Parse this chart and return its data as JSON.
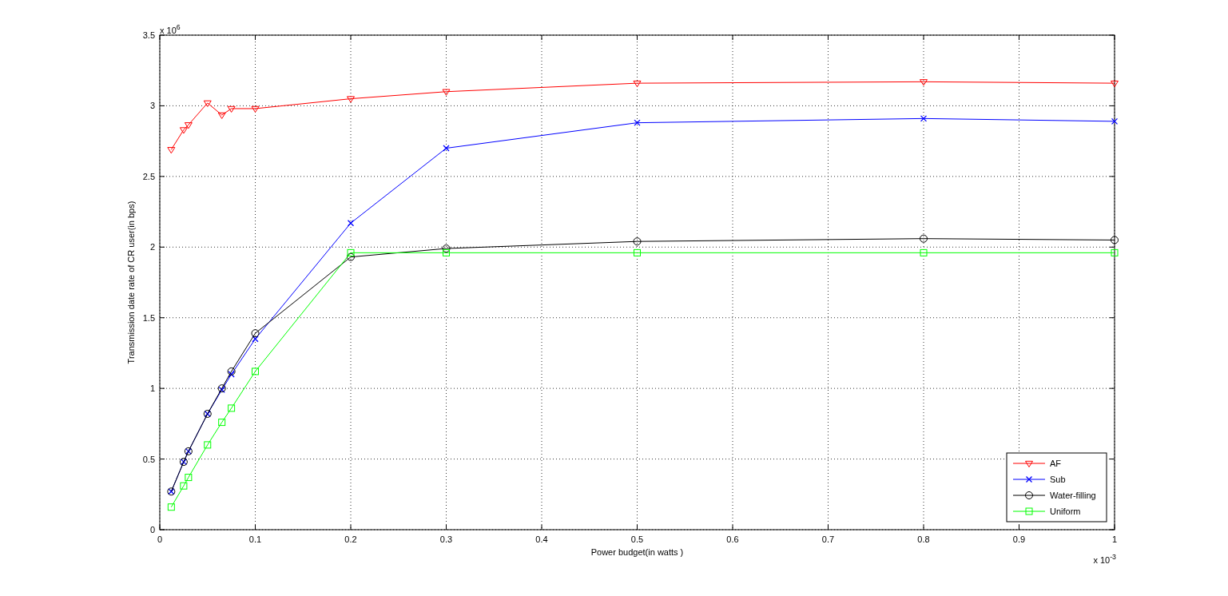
{
  "chart_data": {
    "type": "line",
    "xlabel": "Power budget(in watts )",
    "ylabel": "Transmission date rate of CR user(in bps)",
    "x": [
      0.012,
      0.025,
      0.03,
      0.05,
      0.065,
      0.075,
      0.1,
      0.2,
      0.3,
      0.5,
      0.8,
      1
    ],
    "series": [
      {
        "name": "AF",
        "color": "#ff0000",
        "marker": "triangle",
        "values": [
          2.69,
          2.83,
          2.865,
          3.02,
          2.935,
          2.98,
          2.98,
          3.05,
          3.1,
          3.16,
          3.17,
          3.16
        ]
      },
      {
        "name": "Sub",
        "color": "#0000ff",
        "marker": "cross",
        "values": [
          0.27,
          0.48,
          0.555,
          0.82,
          0.99,
          1.1,
          1.35,
          2.17,
          2.7,
          2.88,
          2.91,
          2.89
        ]
      },
      {
        "name": "Water-filling",
        "color": "#000000",
        "marker": "circle",
        "values": [
          0.27,
          0.48,
          0.555,
          0.82,
          1.0,
          1.12,
          1.39,
          1.93,
          1.99,
          2.04,
          2.06,
          2.05
        ]
      },
      {
        "name": "Uniform",
        "color": "#00ff00",
        "marker": "square",
        "values": [
          0.16,
          0.31,
          0.37,
          0.6,
          0.76,
          0.86,
          1.12,
          1.96,
          1.96,
          1.96,
          1.96,
          1.96
        ]
      }
    ],
    "xlim": [
      0,
      1
    ],
    "xticks": [
      0,
      0.1,
      0.2,
      0.3,
      0.4,
      0.5,
      0.6,
      0.7,
      0.8,
      0.9,
      1
    ],
    "ylim": [
      0,
      3.5
    ],
    "yticks": [
      0,
      0.5,
      1,
      1.5,
      2,
      2.5,
      3,
      3.5
    ],
    "grid": true,
    "line_style": "solid",
    "legend": "bottom right",
    "annotations": [
      "x 10$^{6}$",
      "x 10$^{-3}$"
    ]
  }
}
